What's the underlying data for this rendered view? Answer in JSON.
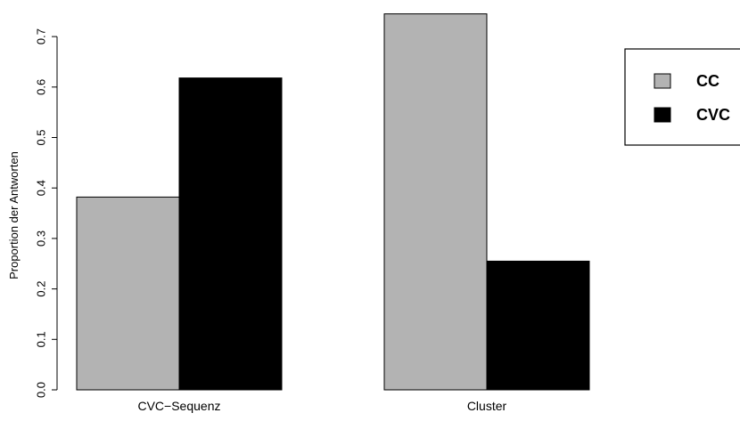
{
  "chart_data": {
    "type": "bar",
    "title": "",
    "xlabel": "",
    "ylabel": "Proportion der Antworten",
    "ylim": [
      0,
      0.7
    ],
    "yticks": [
      "0.0",
      "0.1",
      "0.2",
      "0.3",
      "0.4",
      "0.5",
      "0.6",
      "0.7"
    ],
    "categories": [
      "CVC−Sequenz",
      "Cluster"
    ],
    "series": [
      {
        "name": "CC",
        "color": "#b3b3b3",
        "values": [
          0.382,
          0.745
        ]
      },
      {
        "name": "CVC",
        "color": "#000000",
        "values": [
          0.618,
          0.255
        ]
      }
    ],
    "legend": {
      "position": "right"
    },
    "grid": false
  }
}
